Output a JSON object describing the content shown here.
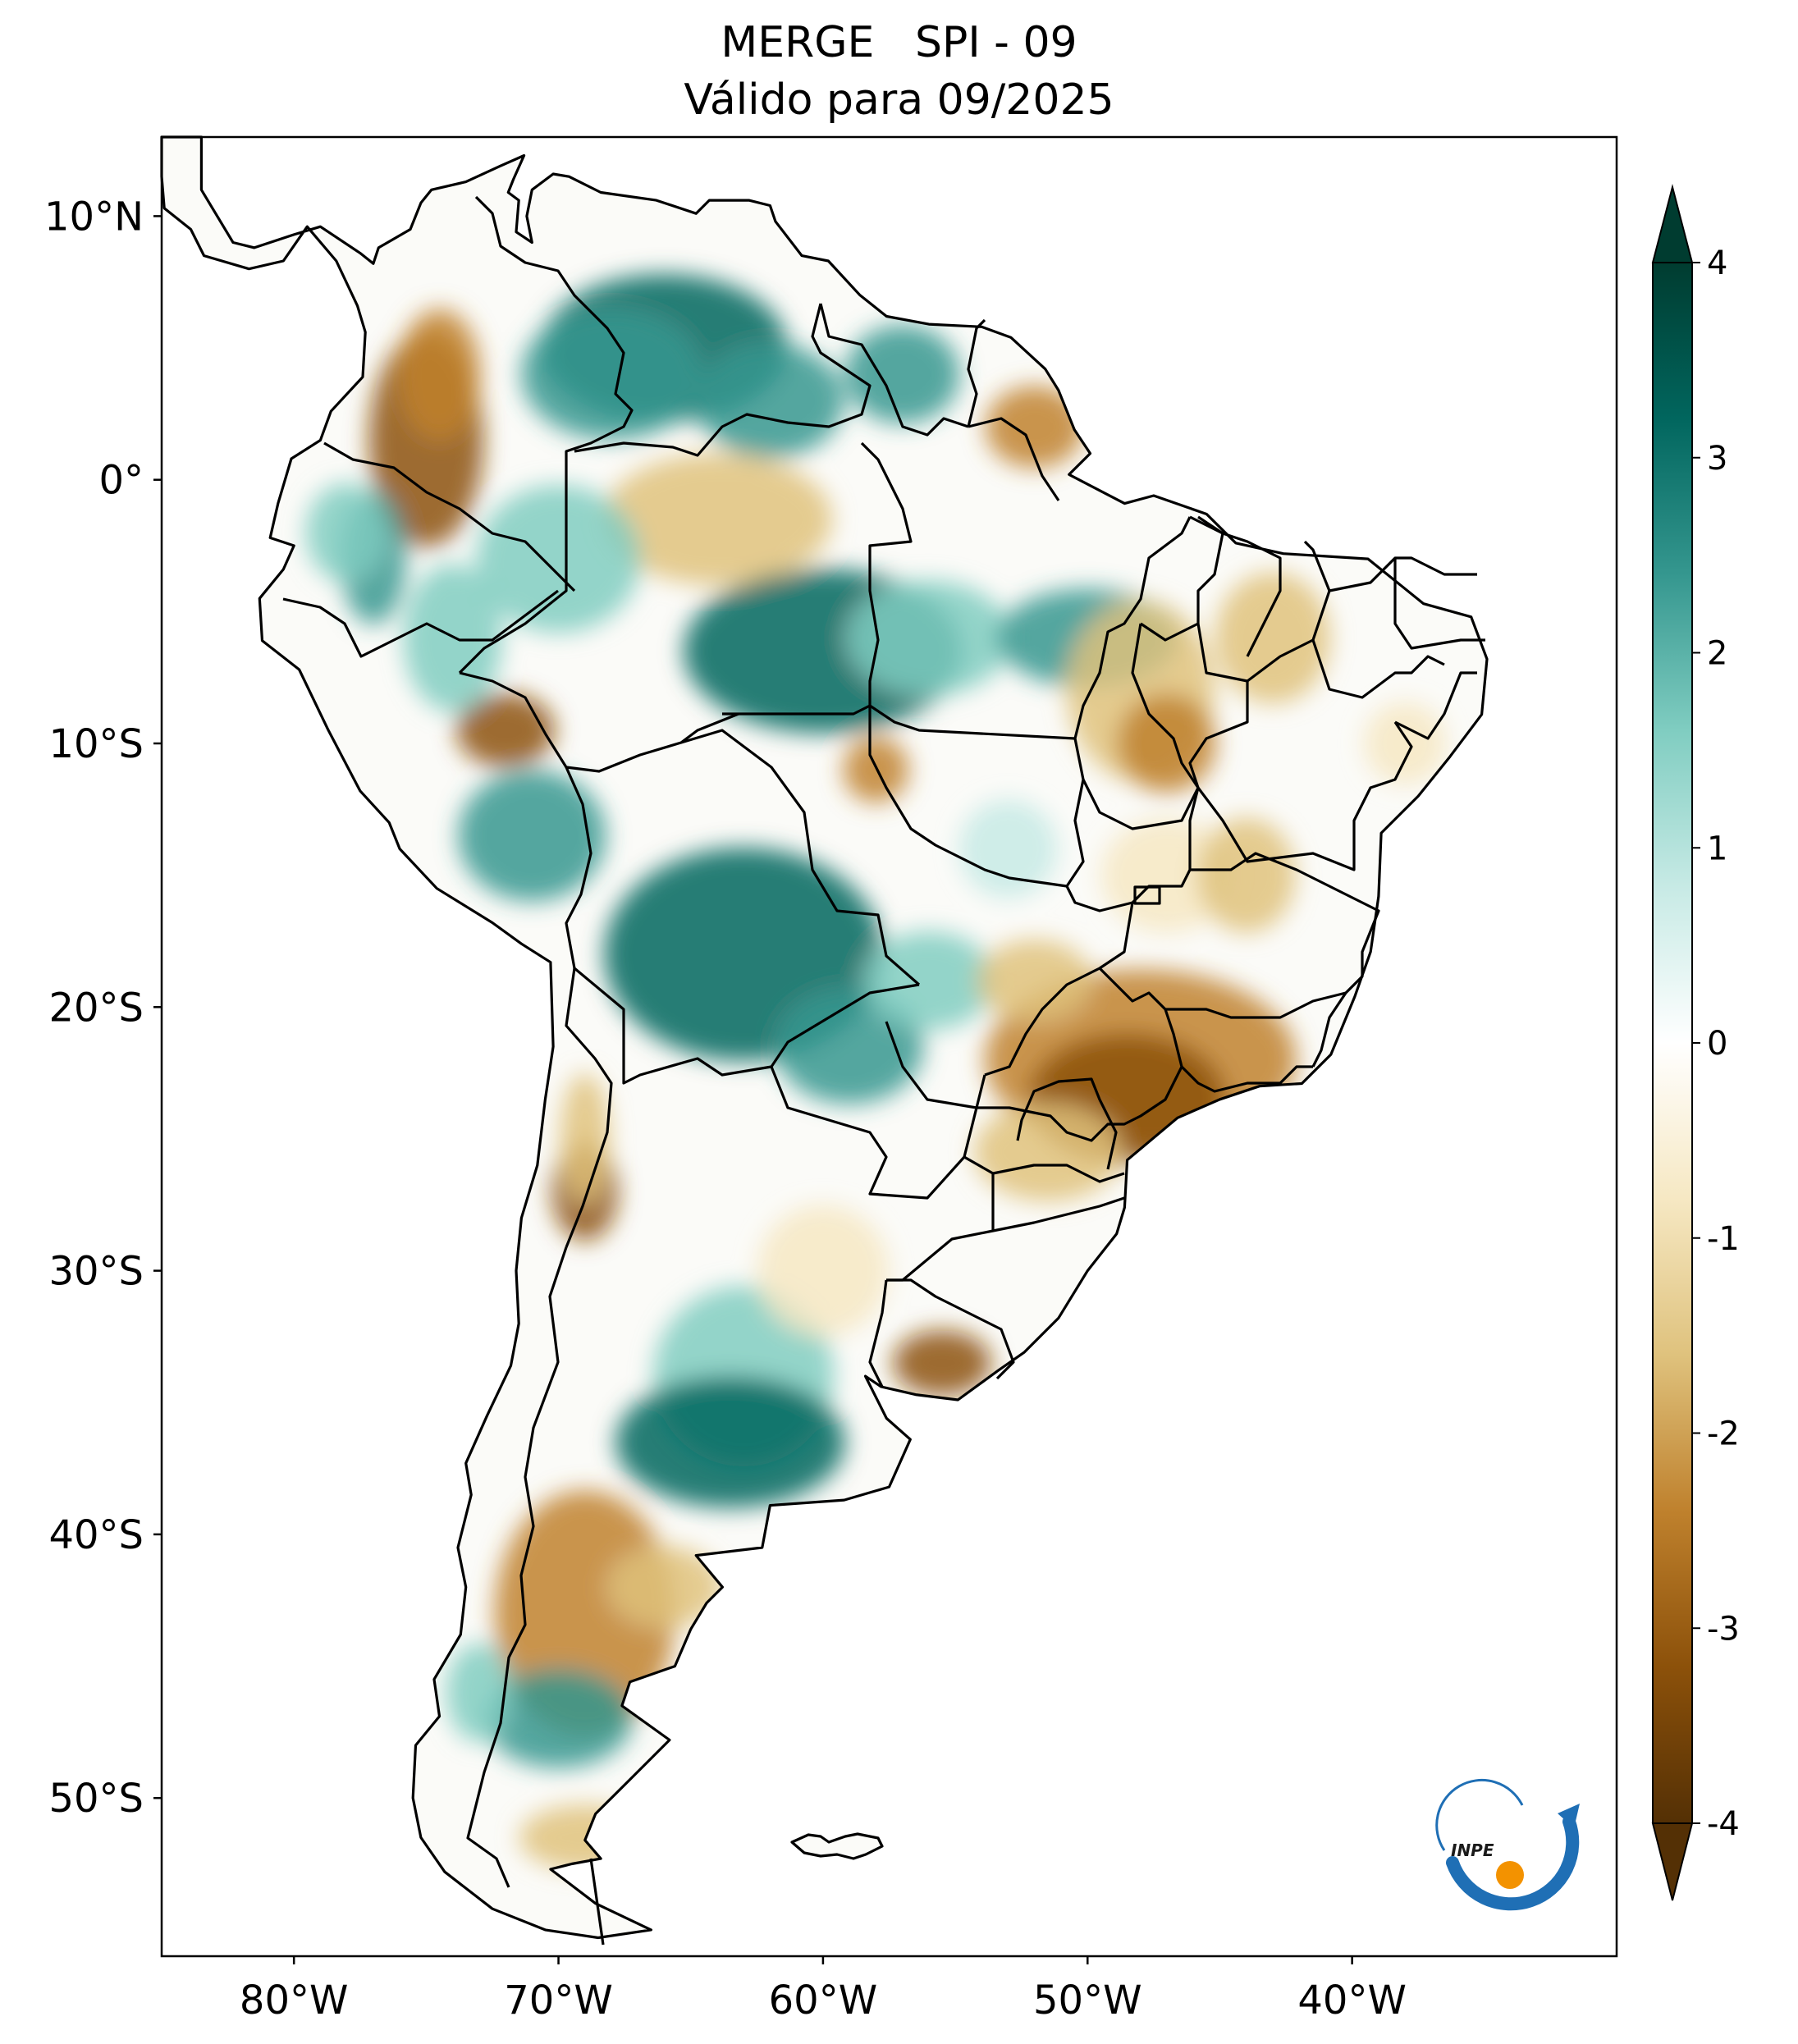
{
  "title": {
    "line1": "MERGE   SPI - 09",
    "line2": "Válido para 09/2025"
  },
  "axes": {
    "x_ticks": [
      {
        "label": "80°W",
        "lon": -80
      },
      {
        "label": "70°W",
        "lon": -70
      },
      {
        "label": "60°W",
        "lon": -60
      },
      {
        "label": "50°W",
        "lon": -50
      },
      {
        "label": "40°W",
        "lon": -40
      }
    ],
    "y_ticks": [
      {
        "label": "10°N",
        "lat": 10
      },
      {
        "label": "0°",
        "lat": 0
      },
      {
        "label": "10°S",
        "lat": -10
      },
      {
        "label": "20°S",
        "lat": -20
      },
      {
        "label": "30°S",
        "lat": -30
      },
      {
        "label": "40°S",
        "lat": -40
      },
      {
        "label": "50°S",
        "lat": -50
      }
    ],
    "lon_range": [
      -85,
      -30
    ],
    "lat_range": [
      -56,
      13
    ]
  },
  "colorbar": {
    "range": [
      -4,
      4
    ],
    "extend": "both",
    "ticks": [
      {
        "label": "4",
        "value": 4
      },
      {
        "label": "3",
        "value": 3
      },
      {
        "label": "2",
        "value": 2
      },
      {
        "label": "1",
        "value": 1
      },
      {
        "label": "0",
        "value": 0
      },
      {
        "label": "-1",
        "value": -1
      },
      {
        "label": "-2",
        "value": -2
      },
      {
        "label": "-3",
        "value": -3
      },
      {
        "label": "-4",
        "value": -4
      }
    ],
    "colormap": "BrBG",
    "colors": {
      "dry_extreme": "#543005",
      "dry_strong": "#8c510a",
      "dry_moderate": "#bf812d",
      "dry_mild": "#dfc27d",
      "dry_slight": "#f6e8c3",
      "neutral": "#ffffff",
      "wet_slight": "#c7eae5",
      "wet_mild": "#80cdc1",
      "wet_moderate": "#35978f",
      "wet_strong": "#01665e",
      "wet_extreme": "#003c30"
    }
  },
  "logo": {
    "text": "INPE",
    "ring_color": "#1f6fb5",
    "dot_color": "#f39200"
  }
}
